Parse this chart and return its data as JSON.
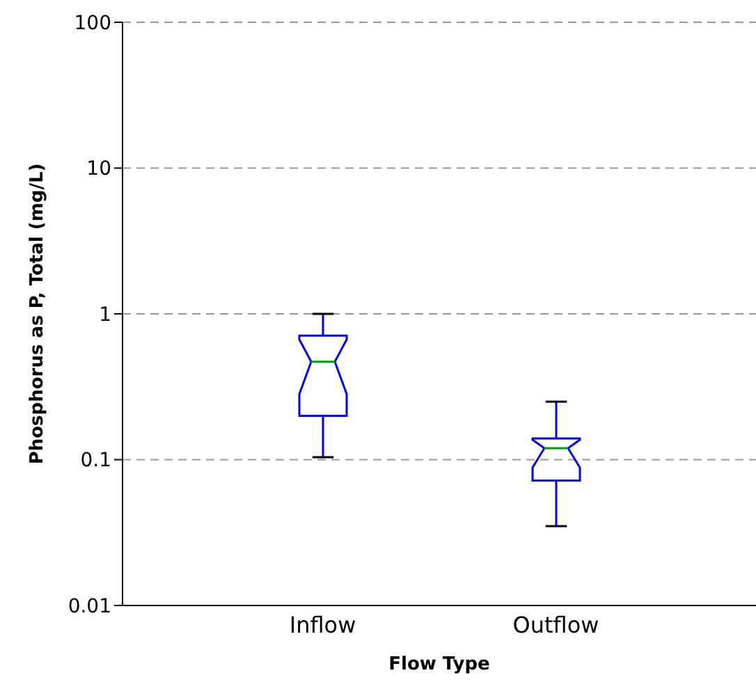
{
  "chart_data": {
    "type": "box",
    "xlabel": "Flow Type",
    "ylabel": "Phosphorus as P, Total (mg/L)",
    "categories": [
      "Inflow",
      "Outflow"
    ],
    "boxes": [
      {
        "low": 0.104,
        "q1": 0.2,
        "median": 0.47,
        "q3": 0.71,
        "high": 1.0
      },
      {
        "low": 0.035,
        "q1": 0.072,
        "median": 0.12,
        "q3": 0.14,
        "high": 0.25
      }
    ],
    "color": "#0000ff",
    "log": true,
    "ylim": [
      0.01,
      100
    ],
    "yticks": [
      0.01,
      0.1,
      1,
      10,
      100
    ],
    "grid": "y"
  }
}
